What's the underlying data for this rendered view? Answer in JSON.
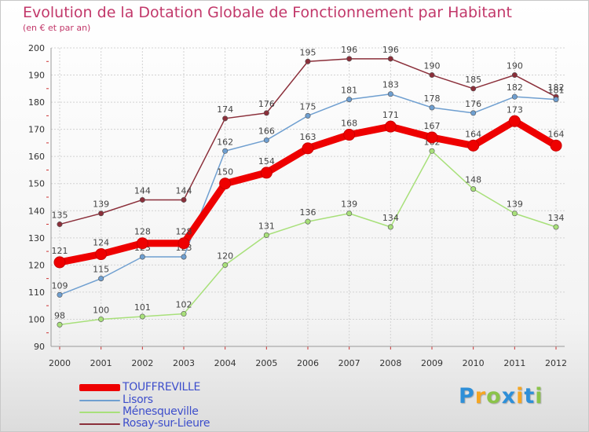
{
  "chart_data": {
    "type": "line",
    "title": "Evolution de la Dotation Globale de Fonctionnement par Habitant",
    "subtitle": "(en € et par an)",
    "xlabel": "",
    "ylabel": "",
    "ylim": [
      90,
      200
    ],
    "yticks": [
      90,
      100,
      110,
      120,
      130,
      140,
      150,
      160,
      170,
      180,
      190,
      200
    ],
    "categories": [
      "2000",
      "2001",
      "2002",
      "2003",
      "2004",
      "2005",
      "2006",
      "2007",
      "2008",
      "2009",
      "2010",
      "2011",
      "2012"
    ],
    "series": [
      {
        "name": "Rosay-sur-Lieure",
        "color": "#8b2f3a",
        "values": [
          135,
          139,
          144,
          144,
          174,
          176,
          195,
          196,
          196,
          190,
          185,
          190,
          182
        ]
      },
      {
        "name": "Lisors",
        "color": "#6f9fd0",
        "values": [
          109,
          115,
          123,
          123,
          162,
          166,
          175,
          181,
          183,
          178,
          176,
          182,
          181
        ]
      },
      {
        "name": "Ménesqueville",
        "color": "#a8e07a",
        "values": [
          98,
          100,
          101,
          102,
          120,
          131,
          136,
          139,
          134,
          162,
          148,
          139,
          134
        ]
      },
      {
        "name": "TOUFFREVILLE",
        "color": "#ee0000",
        "values": [
          121,
          124,
          128,
          128,
          150,
          154,
          163,
          168,
          171,
          167,
          164,
          173,
          164
        ]
      }
    ],
    "legend_order": [
      "TOUFFREVILLE",
      "Lisors",
      "Ménesqueville",
      "Rosay-sur-Lieure"
    ],
    "legend_position": "bottom-left"
  },
  "logo": {
    "letters": [
      "P",
      "r",
      "o",
      "x",
      "i",
      "t",
      "i"
    ],
    "colors": [
      "#2e8fd8",
      "#f5a623",
      "#8bc34a",
      "#2e8fd8",
      "#f5a623",
      "#2e8fd8",
      "#8bc34a"
    ]
  }
}
